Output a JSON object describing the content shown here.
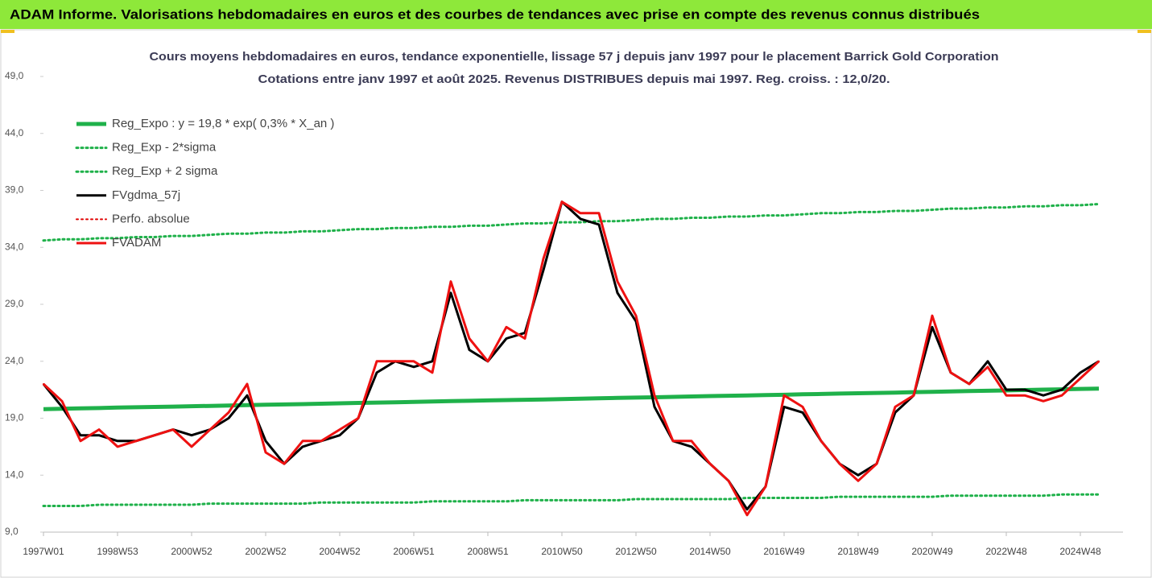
{
  "header": {
    "title": "ADAM Informe. Valorisations hebdomadaires en euros et des courbes de tendances avec prise en compte des revenus connus distribués"
  },
  "chart_data": {
    "type": "line",
    "title": "Cours moyens hebdomadaires en euros, tendance exponentielle, lissage 57 j depuis janv 1997  pour le placement Barrick Gold Corporation",
    "subtitle": "Cotations entre janv 1997 et août 2025.  Revenus DISTRIBUES depuis mai 1997. Reg. croiss. : 12,0/20.",
    "categories": [
      "1997W01",
      null,
      null,
      null,
      "1998W53",
      null,
      null,
      null,
      "2000W52",
      null,
      null,
      null,
      "2002W52",
      null,
      null,
      null,
      "2004W52",
      null,
      null,
      null,
      "2006W51",
      null,
      null,
      null,
      "2008W51",
      null,
      null,
      null,
      "2010W50",
      null,
      null,
      null,
      "2012W50",
      null,
      null,
      null,
      "2014W50",
      null,
      null,
      null,
      "2016W49",
      null,
      null,
      null,
      "2018W49",
      null,
      null,
      null,
      "2020W49",
      null,
      null,
      null,
      "2022W48",
      null,
      null,
      null,
      "2024W48",
      null
    ],
    "ylim": [
      9,
      49
    ],
    "yticks": [
      {
        "value": 9,
        "label": "9,0"
      },
      {
        "value": 14,
        "label": "14,0"
      },
      {
        "value": 19,
        "label": "19,0"
      },
      {
        "value": 24,
        "label": "24,0"
      },
      {
        "value": 29,
        "label": "29,0"
      },
      {
        "value": 34,
        "label": "34,0"
      },
      {
        "value": 39,
        "label": "39,0"
      },
      {
        "value": 44,
        "label": "44,0"
      },
      {
        "value": 49,
        "label": "49,0"
      }
    ],
    "grid": false,
    "legend": "top-left",
    "series": [
      {
        "name": "Reg_Expo : y = 19,8 * exp( 0,3% *  X_an )",
        "color": "#1fb14a",
        "dash": "solid",
        "width": 5,
        "values": [
          19.8,
          19.83,
          19.86,
          19.89,
          19.93,
          19.96,
          19.99,
          20.02,
          20.05,
          20.08,
          20.12,
          20.15,
          20.18,
          20.21,
          20.24,
          20.27,
          20.31,
          20.34,
          20.37,
          20.4,
          20.43,
          20.46,
          20.5,
          20.53,
          20.56,
          20.59,
          20.62,
          20.65,
          20.68,
          20.72,
          20.75,
          20.78,
          20.81,
          20.84,
          20.87,
          20.91,
          20.94,
          20.97,
          21.0,
          21.03,
          21.06,
          21.1,
          21.13,
          21.16,
          21.19,
          21.22,
          21.25,
          21.29,
          21.32,
          21.35,
          21.38,
          21.41,
          21.44,
          21.47,
          21.51,
          21.54,
          21.57,
          21.6
        ]
      },
      {
        "name": "Reg_Exp - 2*sigma",
        "color": "#1fb14a",
        "dash": "dotted",
        "width": 3,
        "values": [
          11.3,
          11.3,
          11.3,
          11.4,
          11.4,
          11.4,
          11.4,
          11.4,
          11.4,
          11.5,
          11.5,
          11.5,
          11.5,
          11.5,
          11.5,
          11.6,
          11.6,
          11.6,
          11.6,
          11.6,
          11.6,
          11.7,
          11.7,
          11.7,
          11.7,
          11.7,
          11.8,
          11.8,
          11.8,
          11.8,
          11.8,
          11.8,
          11.9,
          11.9,
          11.9,
          11.9,
          11.9,
          11.9,
          12.0,
          12.0,
          12.0,
          12.0,
          12.0,
          12.1,
          12.1,
          12.1,
          12.1,
          12.1,
          12.1,
          12.2,
          12.2,
          12.2,
          12.2,
          12.2,
          12.2,
          12.3,
          12.3,
          12.3
        ]
      },
      {
        "name": "Reg_Exp + 2 sigma",
        "color": "#1fb14a",
        "dash": "dotted",
        "width": 3,
        "values": [
          34.6,
          34.7,
          34.7,
          34.8,
          34.8,
          34.9,
          34.9,
          35.0,
          35.0,
          35.1,
          35.2,
          35.2,
          35.3,
          35.3,
          35.4,
          35.4,
          35.5,
          35.6,
          35.6,
          35.7,
          35.7,
          35.8,
          35.8,
          35.9,
          35.9,
          36.0,
          36.1,
          36.1,
          36.2,
          36.2,
          36.3,
          36.3,
          36.4,
          36.5,
          36.5,
          36.6,
          36.6,
          36.7,
          36.7,
          36.8,
          36.8,
          36.9,
          37.0,
          37.0,
          37.1,
          37.1,
          37.2,
          37.2,
          37.3,
          37.4,
          37.4,
          37.5,
          37.5,
          37.6,
          37.6,
          37.7,
          37.7,
          37.8
        ]
      },
      {
        "name": "FVgdma_57j",
        "color": "#000000",
        "dash": "solid",
        "width": 3,
        "values": [
          22,
          20,
          17.5,
          17.5,
          17,
          17,
          17.5,
          18,
          17.5,
          18,
          19,
          21,
          17,
          15,
          16.5,
          17,
          17.5,
          19,
          23,
          24,
          23.5,
          24,
          30,
          25,
          24,
          26,
          26.5,
          32,
          38,
          36.5,
          36,
          30,
          27.5,
          20,
          17,
          16.5,
          15,
          13.5,
          11,
          13,
          20,
          19.5,
          17,
          15,
          14,
          15,
          19.5,
          21,
          27,
          23,
          22,
          24,
          21.5,
          21.5,
          21,
          21.5,
          23,
          24
        ]
      },
      {
        "name": "Perfo. absolue",
        "color": "#e00000",
        "dash": "dotted",
        "width": 2,
        "values": [
          22,
          20.5,
          17,
          18,
          16.5,
          17,
          17.5,
          18,
          16.5,
          18,
          19.5,
          22,
          16,
          15,
          17,
          17,
          18,
          19,
          24,
          24,
          24,
          23,
          31,
          26,
          24,
          27,
          26,
          33,
          38,
          37,
          37,
          31,
          28,
          21,
          17,
          17,
          15,
          13.5,
          10.5,
          13,
          21,
          20,
          17,
          15,
          13.5,
          15,
          20,
          21,
          28,
          23,
          22,
          23.5,
          21,
          21,
          20.5,
          21,
          22.5,
          24
        ]
      },
      {
        "name": "FVADAM",
        "color": "#ee1111",
        "dash": "solid",
        "width": 3,
        "values": [
          22,
          20.5,
          17,
          18,
          16.5,
          17,
          17.5,
          18,
          16.5,
          18,
          19.5,
          22,
          16,
          15,
          17,
          17,
          18,
          19,
          24,
          24,
          24,
          23,
          31,
          26,
          24,
          27,
          26,
          33,
          38,
          37,
          37,
          31,
          28,
          21,
          17,
          17,
          15,
          13.5,
          10.5,
          13,
          21,
          20,
          17,
          15,
          13.5,
          15,
          20,
          21,
          28,
          23,
          22,
          23.5,
          21,
          21,
          20.5,
          21,
          22.5,
          24
        ]
      }
    ]
  }
}
